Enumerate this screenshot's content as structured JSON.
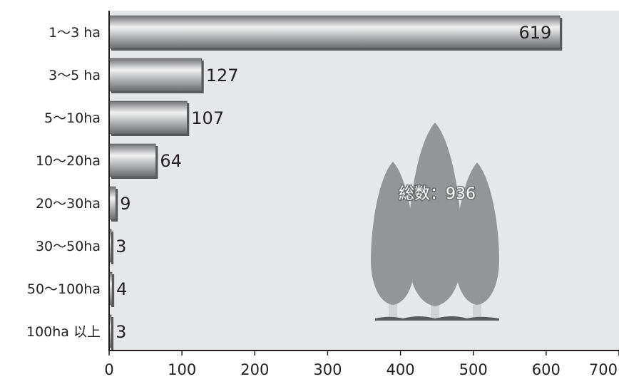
{
  "chart_data": {
    "type": "bar",
    "orientation": "horizontal",
    "categories": [
      "1～3 ha",
      "3～5 ha",
      "5～10ha",
      "10～20ha",
      "20～30ha",
      "30～50ha",
      "50～100ha",
      "100ha 以上"
    ],
    "values": [
      619,
      127,
      107,
      64,
      9,
      3,
      4,
      3
    ],
    "data_labels": [
      "619",
      "127",
      "107",
      "64",
      "9",
      "3",
      "4",
      "3"
    ],
    "x_ticks": [
      "0",
      "100",
      "200",
      "300",
      "400",
      "500",
      "600",
      "700"
    ],
    "xlim": [
      0,
      700
    ],
    "grid": false,
    "annotation": "総数：936",
    "colors": {
      "plot_background": "#e6e7e8",
      "bar": "#8a8b8d",
      "tree": "#939598",
      "text": "#231f20"
    }
  }
}
